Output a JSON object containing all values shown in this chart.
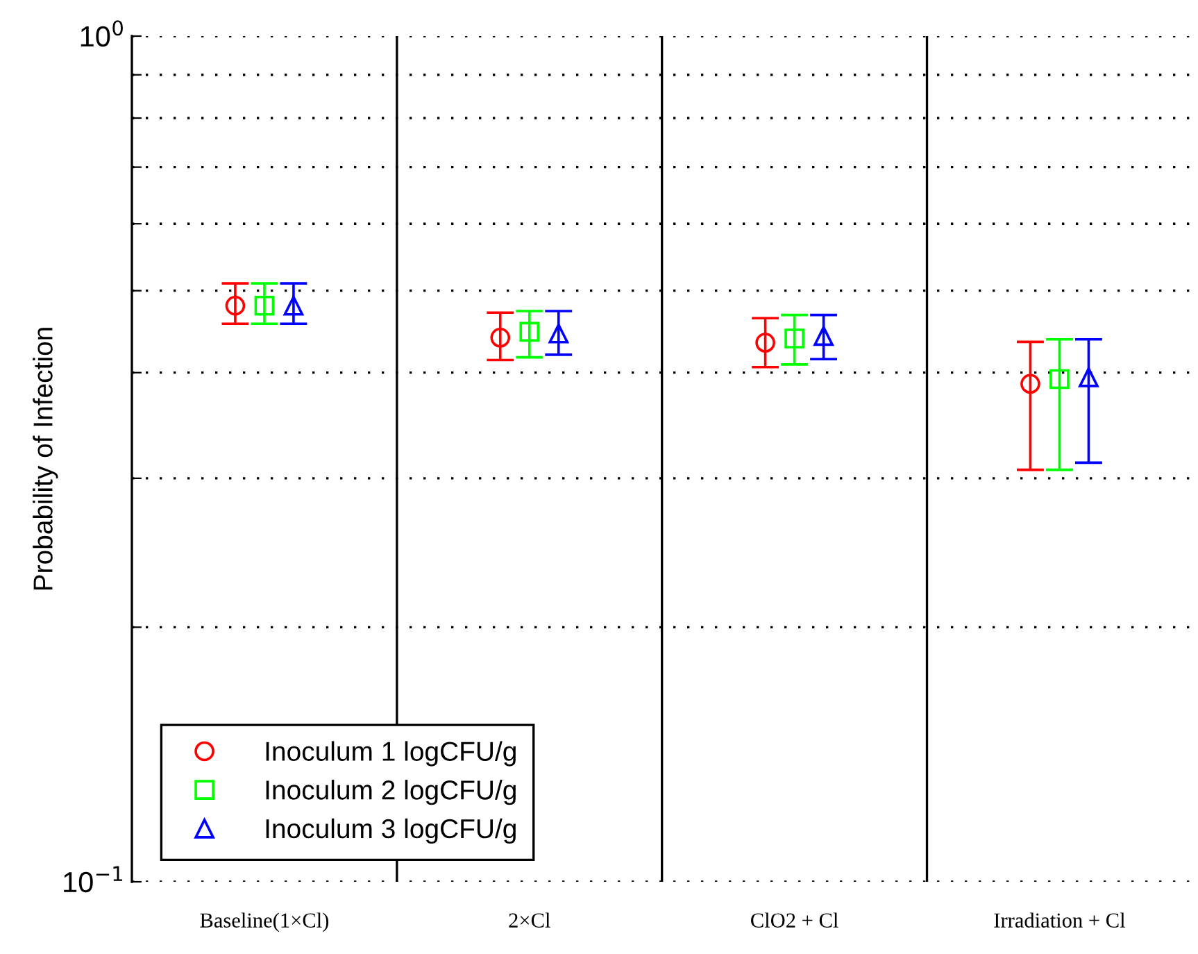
{
  "chart_data": {
    "type": "scatter",
    "ylabel": "Probability of Infection",
    "categories": [
      "Baseline(1×Cl)",
      "2×Cl",
      "ClO2 + Cl",
      "Irradiation + Cl"
    ],
    "series": [
      {
        "name": "Inoculum 1 logCFU/g",
        "color": "#ff0000",
        "marker": "circle",
        "values": [
          0.48,
          0.44,
          0.434,
          0.388
        ],
        "errors": [
          [
            0.457,
            0.51
          ],
          [
            0.414,
            0.471
          ],
          [
            0.406,
            0.464
          ],
          [
            0.307,
            0.435
          ]
        ]
      },
      {
        "name": "Inoculum 2 logCFU/g",
        "color": "#00ff00",
        "marker": "square",
        "values": [
          0.48,
          0.447,
          0.439,
          0.393
        ],
        "errors": [
          [
            0.457,
            0.51
          ],
          [
            0.417,
            0.473
          ],
          [
            0.409,
            0.468
          ],
          [
            0.307,
            0.438
          ]
        ]
      },
      {
        "name": "Inoculum 3 logCFU/g",
        "color": "#0000ff",
        "marker": "triangle",
        "values": [
          0.48,
          0.445,
          0.442,
          0.395
        ],
        "errors": [
          [
            0.457,
            0.51
          ],
          [
            0.42,
            0.473
          ],
          [
            0.415,
            0.468
          ],
          [
            0.313,
            0.438
          ]
        ]
      }
    ],
    "log": "y",
    "ylim": [
      0.1,
      1
    ],
    "yticks": [
      {
        "value": 0.1,
        "label": "10$^{−1}$"
      },
      {
        "value": 0.2,
        "label": null
      },
      {
        "value": 0.3,
        "label": null
      },
      {
        "value": 0.4,
        "label": null
      },
      {
        "value": 0.5,
        "label": null
      },
      {
        "value": 0.6,
        "label": null
      },
      {
        "value": 0.7,
        "label": null
      },
      {
        "value": 0.8,
        "label": null
      },
      {
        "value": 0.9,
        "label": null
      },
      {
        "value": 1,
        "label": "10$^{0}$"
      }
    ],
    "grid": "y",
    "legend": "bottom left"
  }
}
